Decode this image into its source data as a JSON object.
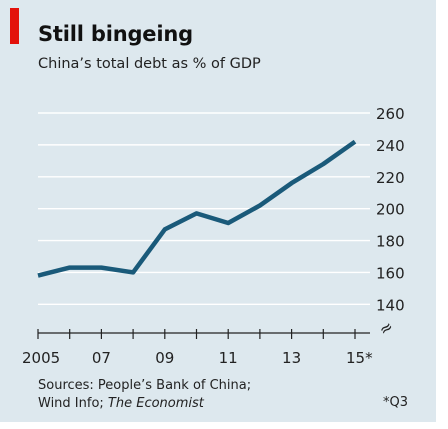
{
  "title": "Still bingeing",
  "subtitle": "China’s total debt as % of GDP",
  "accent_color": "#e3120b",
  "line_color": "#1a5a7a",
  "source_line1": "Sources: People’s Bank of China;",
  "source_line2_plain": "Wind Info; ",
  "source_line2_italic": "The Economist",
  "footnote": "*Q3",
  "axis_break_symbol": "≈",
  "chart_data": {
    "type": "line",
    "x": [
      2005,
      2006,
      2007,
      2008,
      2009,
      2010,
      2011,
      2012,
      2013,
      2014,
      2015
    ],
    "series": [
      {
        "values": [
          158,
          163,
          163,
          160,
          187,
          197,
          191,
          202,
          216,
          228,
          242
        ]
      }
    ],
    "xtick_labels": [
      {
        "x": 2005,
        "label": "2005"
      },
      {
        "x": 2007,
        "label": "07"
      },
      {
        "x": 2009,
        "label": "09"
      },
      {
        "x": 2011,
        "label": "11"
      },
      {
        "x": 2013,
        "label": "13"
      },
      {
        "x": 2015,
        "label": "15*"
      }
    ],
    "yticks": [
      140,
      160,
      180,
      200,
      220,
      240,
      260
    ],
    "ylim": [
      122,
      260
    ],
    "y_axis_side": "right",
    "y_axis_break": true,
    "grid": true
  }
}
